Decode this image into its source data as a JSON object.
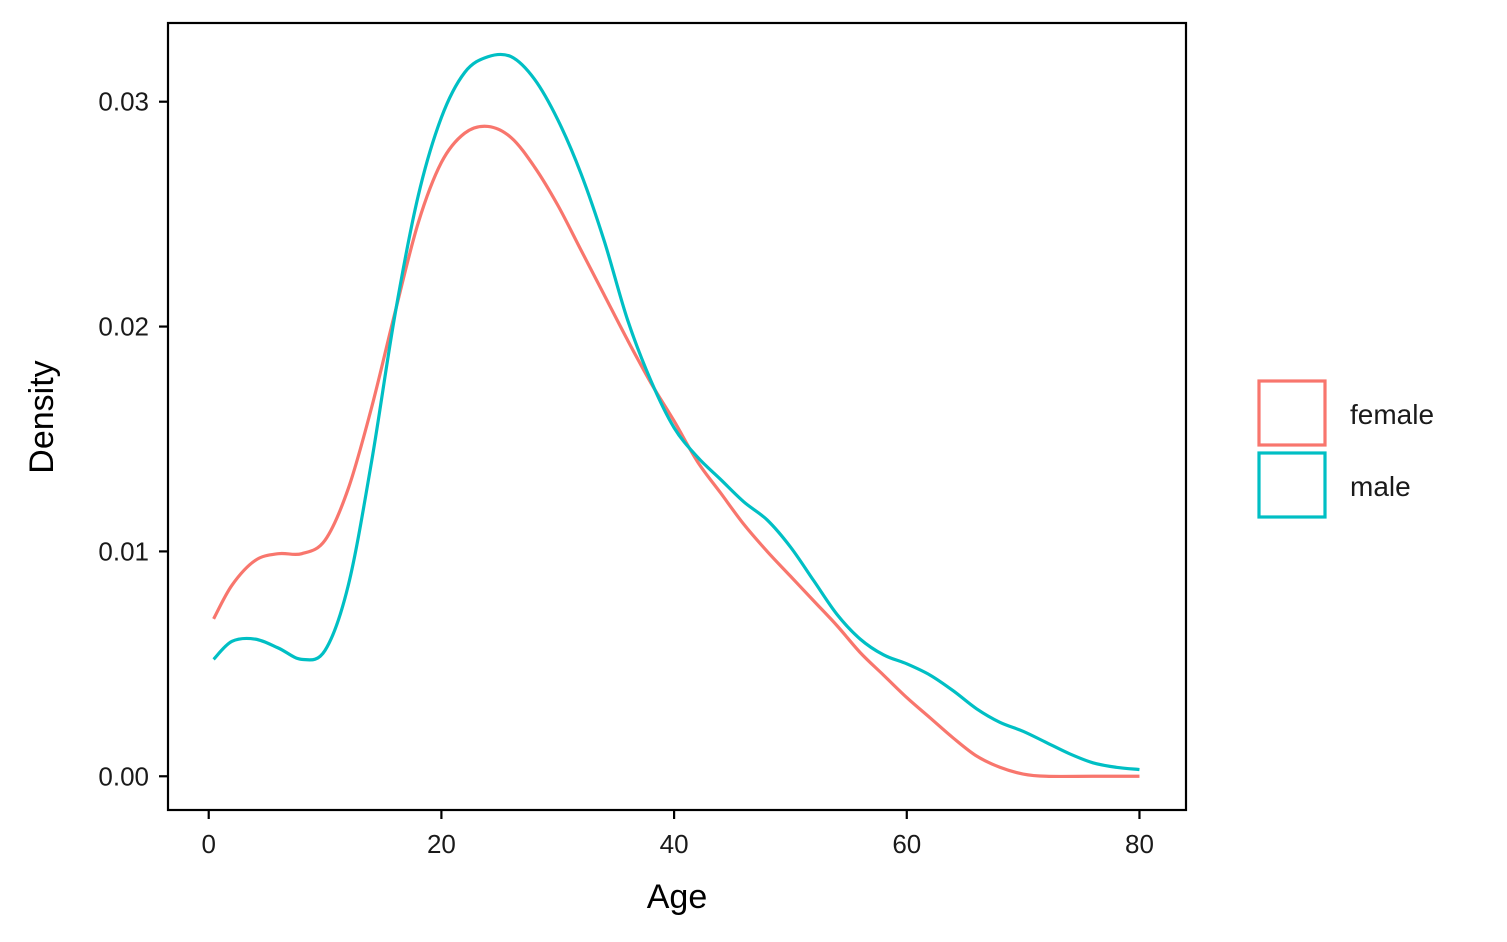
{
  "chart_data": {
    "type": "line",
    "title": "",
    "xlabel": "Age",
    "ylabel": "Density",
    "xlim": [
      -3.5,
      84
    ],
    "ylim": [
      -0.0015,
      0.0335
    ],
    "x_ticks": [
      0,
      20,
      40,
      60,
      80
    ],
    "x_tick_labels": [
      "0",
      "20",
      "40",
      "60",
      "80"
    ],
    "y_ticks": [
      0.0,
      0.01,
      0.02,
      0.03
    ],
    "y_tick_labels": [
      "0.00",
      "0.01",
      "0.02",
      "0.03"
    ],
    "grid": false,
    "legend": {
      "position": "right",
      "entries": [
        "female",
        "male"
      ]
    },
    "series": [
      {
        "name": "female",
        "color": "#F8766D",
        "points": [
          [
            0.42,
            0.007
          ],
          [
            2,
            0.0085
          ],
          [
            4,
            0.0096
          ],
          [
            6,
            0.0099
          ],
          [
            8,
            0.0099
          ],
          [
            10,
            0.0105
          ],
          [
            12,
            0.0128
          ],
          [
            14,
            0.0164
          ],
          [
            16,
            0.0206
          ],
          [
            18,
            0.0246
          ],
          [
            20,
            0.0273
          ],
          [
            22,
            0.0286
          ],
          [
            24,
            0.0289
          ],
          [
            26,
            0.0284
          ],
          [
            28,
            0.0271
          ],
          [
            30,
            0.0254
          ],
          [
            32,
            0.0234
          ],
          [
            34,
            0.0214
          ],
          [
            36,
            0.0194
          ],
          [
            38,
            0.0175
          ],
          [
            40,
            0.0158
          ],
          [
            42,
            0.014
          ],
          [
            44,
            0.0126
          ],
          [
            46,
            0.0112
          ],
          [
            48,
            0.01
          ],
          [
            50,
            0.0089
          ],
          [
            52,
            0.0078
          ],
          [
            54,
            0.0067
          ],
          [
            56,
            0.0055
          ],
          [
            58,
            0.0045
          ],
          [
            60,
            0.0035
          ],
          [
            62,
            0.0026
          ],
          [
            64,
            0.0017
          ],
          [
            66,
            0.0009
          ],
          [
            68,
            0.0004
          ],
          [
            70,
            0.0001
          ],
          [
            72,
            0.0
          ],
          [
            76,
            0.0
          ],
          [
            80,
            0.0
          ]
        ]
      },
      {
        "name": "male",
        "color": "#00BFC4",
        "points": [
          [
            0.42,
            0.0052
          ],
          [
            2,
            0.006
          ],
          [
            4,
            0.0061
          ],
          [
            6,
            0.0057
          ],
          [
            8,
            0.0052
          ],
          [
            10,
            0.0056
          ],
          [
            12,
            0.0085
          ],
          [
            14,
            0.014
          ],
          [
            16,
            0.0205
          ],
          [
            18,
            0.0258
          ],
          [
            20,
            0.0293
          ],
          [
            22,
            0.0313
          ],
          [
            24,
            0.032
          ],
          [
            26,
            0.032
          ],
          [
            28,
            0.031
          ],
          [
            30,
            0.0292
          ],
          [
            32,
            0.0268
          ],
          [
            34,
            0.0238
          ],
          [
            36,
            0.0203
          ],
          [
            38,
            0.0176
          ],
          [
            40,
            0.0155
          ],
          [
            42,
            0.0142
          ],
          [
            44,
            0.0132
          ],
          [
            46,
            0.0122
          ],
          [
            48,
            0.0114
          ],
          [
            50,
            0.0102
          ],
          [
            52,
            0.0087
          ],
          [
            54,
            0.0072
          ],
          [
            56,
            0.0061
          ],
          [
            58,
            0.0054
          ],
          [
            60,
            0.005
          ],
          [
            62,
            0.0045
          ],
          [
            64,
            0.0038
          ],
          [
            66,
            0.003
          ],
          [
            68,
            0.0024
          ],
          [
            70,
            0.002
          ],
          [
            72,
            0.0015
          ],
          [
            74,
            0.001
          ],
          [
            76,
            0.0006
          ],
          [
            78,
            0.0004
          ],
          [
            80,
            0.0003
          ]
        ]
      }
    ]
  }
}
